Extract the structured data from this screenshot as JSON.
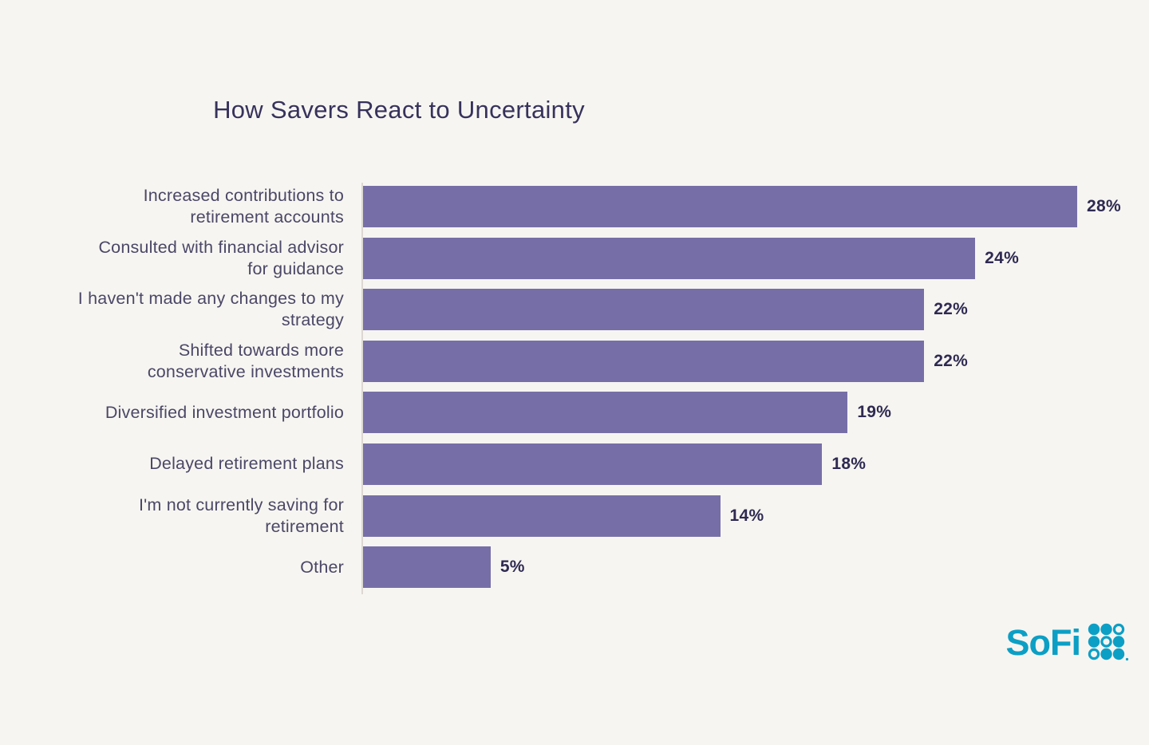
{
  "page": {
    "background_color": "#F7F5F1"
  },
  "header": {
    "title": "How Savers React to Uncertainty"
  },
  "chart_data": {
    "type": "bar",
    "orientation": "horizontal",
    "title": "How Savers React to Uncertainty",
    "unit": "percent",
    "xlim": [
      0,
      28
    ],
    "grid": false,
    "legend": false,
    "bars_sorted_descending": true,
    "categories": [
      "Increased contributions to retirement accounts",
      "Consulted with financial advisor for guidance",
      "I haven't made any changes to my strategy",
      "Shifted towards more conservative investments",
      "Diversified investment portfolio",
      "Delayed retirement plans",
      "I'm not currently saving for retirement",
      "Other"
    ],
    "category_lines": [
      [
        "Increased contributions to",
        "retirement accounts"
      ],
      [
        "Consulted with financial advisor",
        "for guidance"
      ],
      [
        "I haven't made any changes to my",
        "strategy"
      ],
      [
        "Shifted towards more",
        "conservative investments"
      ],
      [
        "Diversified investment portfolio"
      ],
      [
        "Delayed retirement plans"
      ],
      [
        "I'm not currently saving for",
        "retirement"
      ],
      [
        "Other"
      ]
    ],
    "values": [
      28,
      24,
      22,
      22,
      19,
      18,
      14,
      5
    ],
    "value_labels": [
      "28%",
      "24%",
      "22%",
      "22%",
      "19%",
      "18%",
      "14%",
      "5%"
    ],
    "colors": {
      "background": "#F7F5F1",
      "bar": "#766FA7",
      "title_text": "#36325C",
      "category_text": "#4B4767",
      "value_text": "#2E2A52",
      "axis_line": "#DCD8D2"
    }
  },
  "branding": {
    "logo_text": "SoFi",
    "logo_color": "#0C9FC5",
    "logo_icon": "sofi-dot-grid-icon"
  }
}
